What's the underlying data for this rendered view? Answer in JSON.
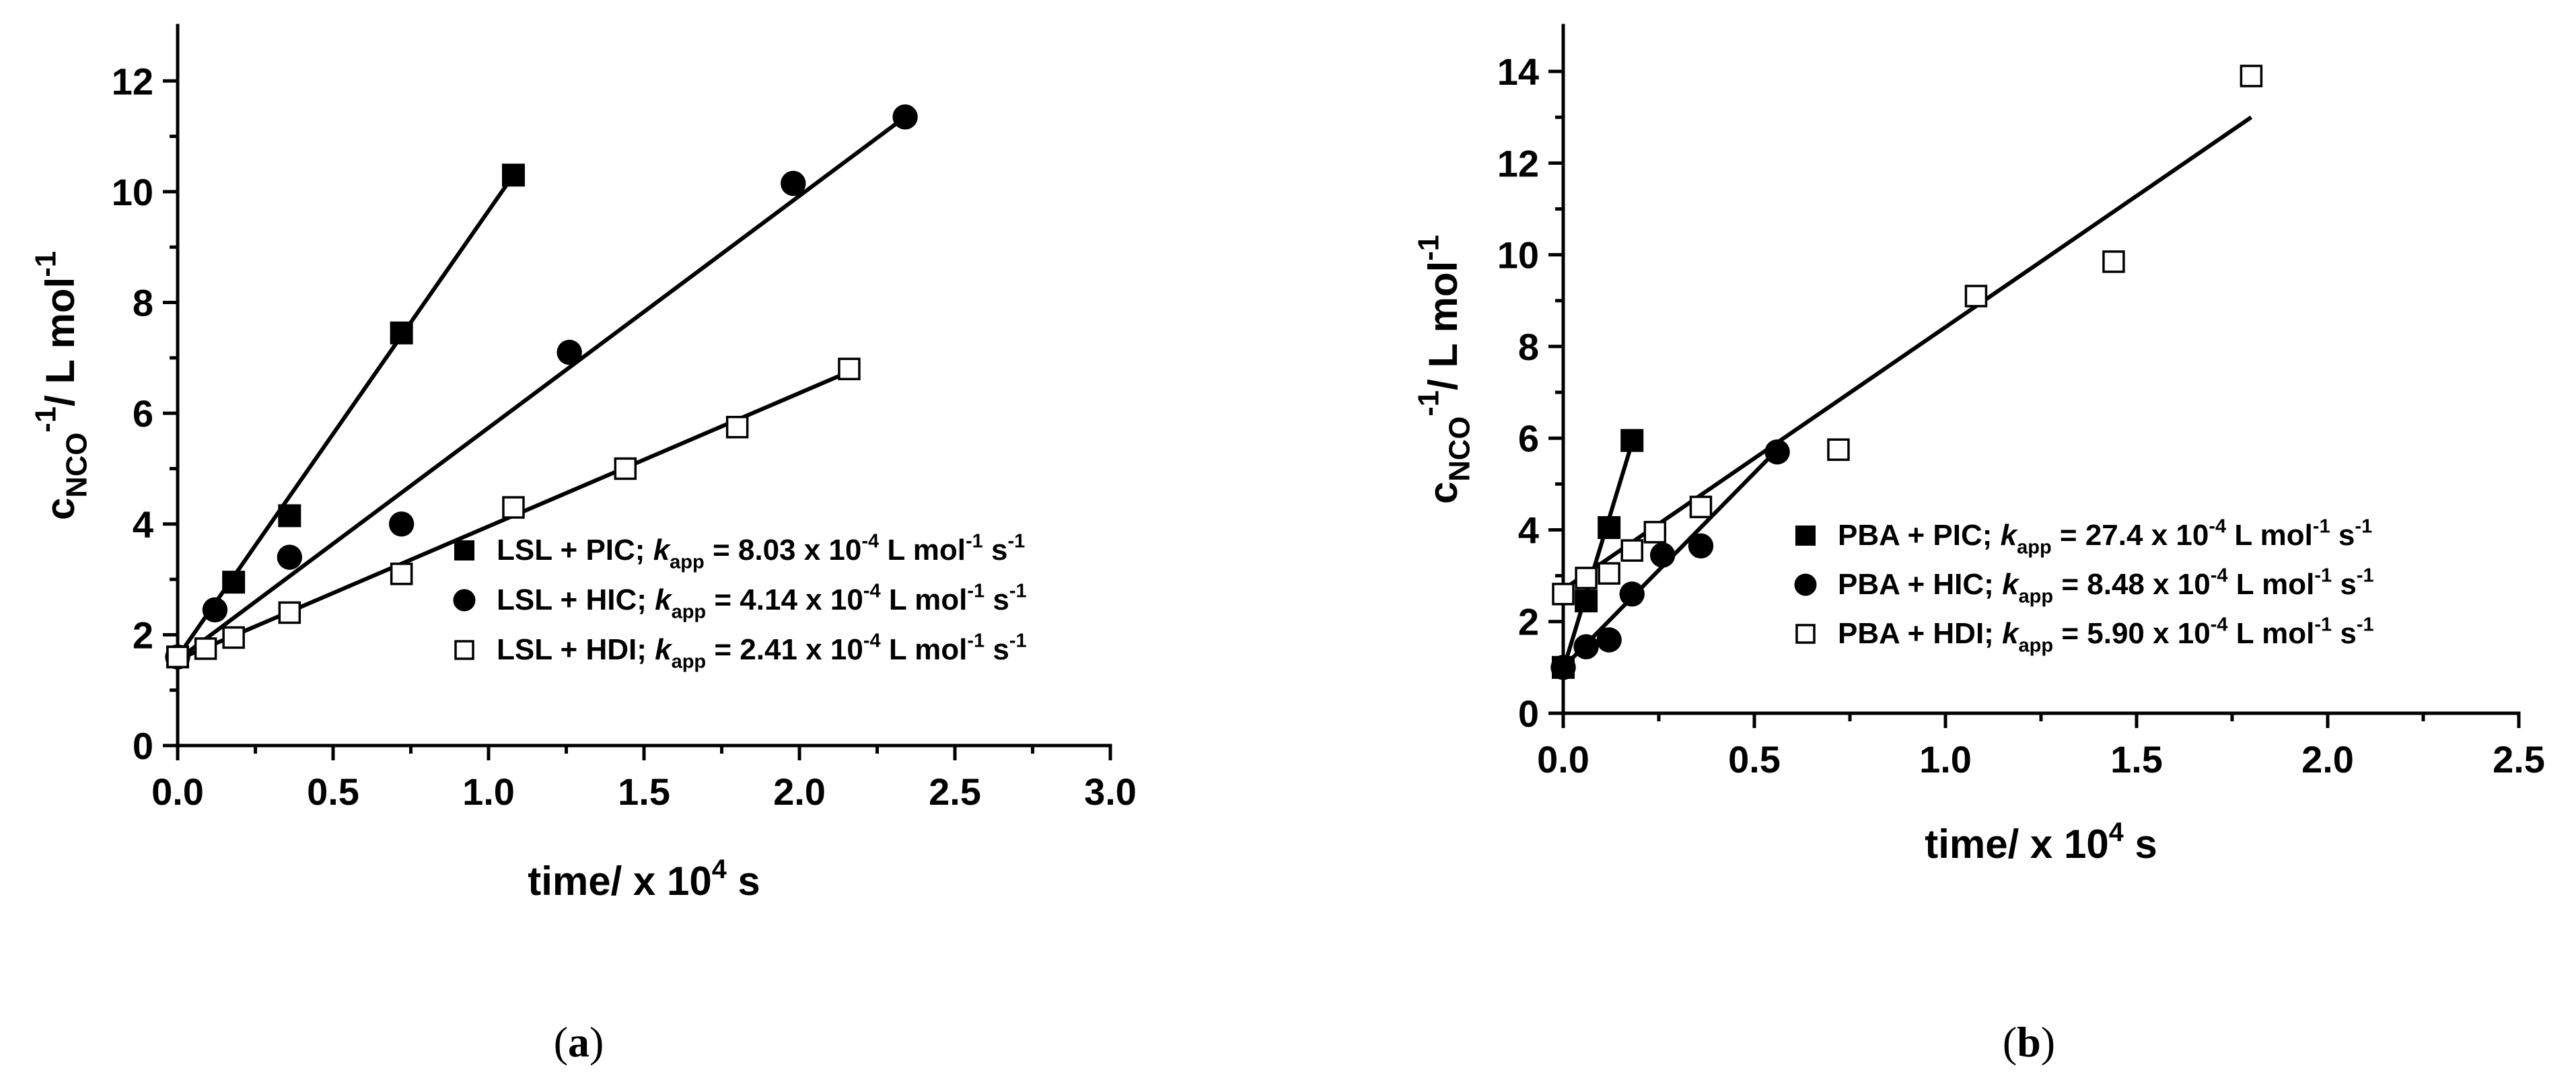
{
  "chart_data": [
    {
      "type": "scatter",
      "panel_label": "(a)",
      "xlabel": "time/ x 10<sup>4</sup> s",
      "ylabel": "c<sub>NCO</sub><sup>-1</sup>/ L mol<sup>-1</sup>",
      "xlim": [
        0,
        3.0
      ],
      "ylim": [
        0,
        13
      ],
      "xticks": [
        0.0,
        0.5,
        1.0,
        1.5,
        2.0,
        2.5,
        3.0
      ],
      "xtick_labels": [
        "0.0",
        "0.5",
        "1.0",
        "1.5",
        "2.0",
        "2.5",
        "3.0"
      ],
      "yticks": [
        0,
        2,
        4,
        6,
        8,
        10,
        12
      ],
      "ytick_labels": [
        "0",
        "2",
        "4",
        "6",
        "8",
        "10",
        "12"
      ],
      "legend_position": "bottom-right",
      "series": [
        {
          "name": "LSL + PIC",
          "legend_label": "LSL + PIC; <i>k</i><sub>app</sub> = 8.03 x 10<sup>-4</sup> L mol<sup>-1</sup> s<sup>-1</sup>",
          "marker": "filled-square",
          "x": [
            0.0,
            0.18,
            0.36,
            0.72,
            1.08
          ],
          "y": [
            1.6,
            2.95,
            4.15,
            7.45,
            10.3
          ],
          "fit": [
            [
              0.0,
              1.6
            ],
            [
              1.08,
              10.3
            ]
          ]
        },
        {
          "name": "LSL + HIC",
          "legend_label": "LSL + HIC; <i>k</i><sub>app</sub> = 4.14 x 10<sup>-4</sup> L mol<sup>-1</sup> s<sup>-1</sup>",
          "marker": "filled-circle",
          "x": [
            0.0,
            0.12,
            0.36,
            0.72,
            1.26,
            1.98,
            2.34
          ],
          "y": [
            1.6,
            2.45,
            3.4,
            4.0,
            7.1,
            10.15,
            11.35
          ],
          "fit": [
            [
              0.0,
              1.55
            ],
            [
              2.34,
              11.35
            ]
          ]
        },
        {
          "name": "LSL + HDI",
          "legend_label": "LSL + HDI; <i>k</i><sub>app</sub> = 2.41 x 10<sup>-4</sup> L mol<sup>-1</sup> s<sup>-1</sup>",
          "marker": "open-square",
          "x": [
            0.0,
            0.09,
            0.18,
            0.36,
            0.72,
            1.08,
            1.44,
            1.8,
            2.16
          ],
          "y": [
            1.6,
            1.75,
            1.95,
            2.4,
            3.1,
            4.3,
            5.0,
            5.75,
            6.8
          ],
          "fit": [
            [
              0.0,
              1.55
            ],
            [
              2.16,
              6.75
            ]
          ]
        }
      ]
    },
    {
      "type": "scatter",
      "panel_label": "(b)",
      "xlabel": "time/ x 10<sup>4</sup> s",
      "ylabel": "c<sub>NCO</sub><sup>-1</sup>/ L mol<sup>-1</sup>",
      "xlim": [
        0,
        2.5
      ],
      "ylim": [
        0,
        15
      ],
      "xticks": [
        0.0,
        0.5,
        1.0,
        1.5,
        2.0,
        2.5
      ],
      "xtick_labels": [
        "0.0",
        "0.5",
        "1.0",
        "1.5",
        "2.0",
        "2.5"
      ],
      "yticks": [
        0,
        2,
        4,
        6,
        8,
        10,
        12,
        14
      ],
      "ytick_labels": [
        "0",
        "2",
        "4",
        "6",
        "8",
        "10",
        "12",
        "14"
      ],
      "legend_position": "bottom-right",
      "series": [
        {
          "name": "PBA + PIC",
          "legend_label": "PBA + PIC; <i>k</i><sub>app</sub> = 27.4 x 10<sup>-4</sup> L mol<sup>-1</sup> s<sup>-1</sup>",
          "marker": "filled-square",
          "x": [
            0.0,
            0.06,
            0.12,
            0.18
          ],
          "y": [
            1.0,
            2.45,
            4.05,
            5.95
          ],
          "fit": [
            [
              0.0,
              0.95
            ],
            [
              0.18,
              5.9
            ]
          ]
        },
        {
          "name": "PBA + HIC",
          "legend_label": "PBA + HIC; <i>k</i><sub>app</sub> = 8.48 x 10<sup>-4</sup> L mol<sup>-1</sup> s<sup>-1</sup>",
          "marker": "filled-circle",
          "x": [
            0.0,
            0.06,
            0.12,
            0.18,
            0.26,
            0.36,
            0.56
          ],
          "y": [
            1.0,
            1.45,
            1.6,
            2.6,
            3.45,
            3.65,
            5.7
          ],
          "fit": [
            [
              0.0,
              1.0
            ],
            [
              0.56,
              5.75
            ]
          ]
        },
        {
          "name": "PBA + HDI",
          "legend_label": "PBA + HDI; <i>k</i><sub>app</sub> = 5.90 x 10<sup>-4</sup> L mol<sup>-1</sup> s<sup>-1</sup>",
          "marker": "open-square",
          "x": [
            0.0,
            0.06,
            0.12,
            0.18,
            0.24,
            0.36,
            0.72,
            1.08,
            1.44,
            1.8
          ],
          "y": [
            2.6,
            2.95,
            3.05,
            3.55,
            3.95,
            4.5,
            5.75,
            9.1,
            9.85,
            13.9
          ],
          "fit": [
            [
              0.0,
              2.7
            ],
            [
              1.8,
              13.0
            ]
          ]
        }
      ]
    }
  ]
}
